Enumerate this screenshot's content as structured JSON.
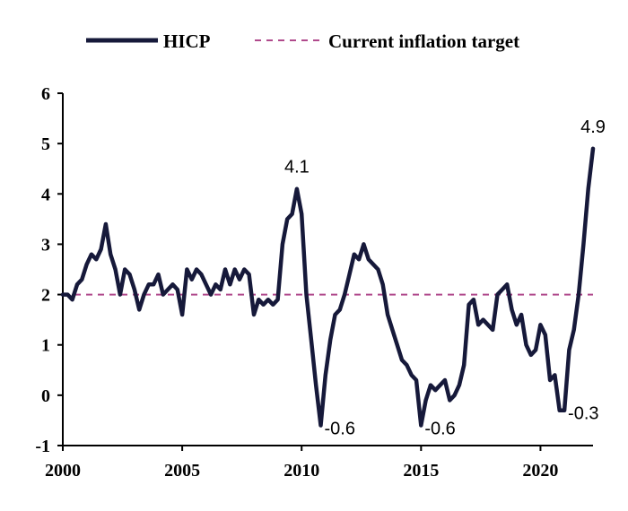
{
  "chart_data": {
    "type": "line",
    "ylim": [
      -1,
      6
    ],
    "xlim": [
      2000,
      2022.2
    ],
    "yticks": [
      "-1",
      "0",
      "1",
      "2",
      "3",
      "4",
      "5",
      "6"
    ],
    "xticks": [
      "2000",
      "2005",
      "2010",
      "2015",
      "2020"
    ],
    "grid": false,
    "legend_position": "top",
    "colors": {
      "hicp": "#16193a",
      "target": "#b04a8c"
    },
    "series": [
      {
        "name": "HICP",
        "points": [
          [
            2000.0,
            2.0
          ],
          [
            2000.2,
            2.0
          ],
          [
            2000.4,
            1.9
          ],
          [
            2000.6,
            2.2
          ],
          [
            2000.8,
            2.3
          ],
          [
            2001.0,
            2.6
          ],
          [
            2001.2,
            2.8
          ],
          [
            2001.4,
            2.7
          ],
          [
            2001.6,
            2.9
          ],
          [
            2001.8,
            3.4
          ],
          [
            2002.0,
            2.8
          ],
          [
            2002.2,
            2.5
          ],
          [
            2002.4,
            2.0
          ],
          [
            2002.6,
            2.5
          ],
          [
            2002.8,
            2.4
          ],
          [
            2003.0,
            2.1
          ],
          [
            2003.2,
            1.7
          ],
          [
            2003.4,
            2.0
          ],
          [
            2003.6,
            2.2
          ],
          [
            2003.8,
            2.2
          ],
          [
            2004.0,
            2.4
          ],
          [
            2004.2,
            2.0
          ],
          [
            2004.4,
            2.1
          ],
          [
            2004.6,
            2.2
          ],
          [
            2004.8,
            2.1
          ],
          [
            2005.0,
            1.6
          ],
          [
            2005.2,
            2.5
          ],
          [
            2005.4,
            2.3
          ],
          [
            2005.6,
            2.5
          ],
          [
            2005.8,
            2.4
          ],
          [
            2006.0,
            2.2
          ],
          [
            2006.2,
            2.0
          ],
          [
            2006.4,
            2.2
          ],
          [
            2006.6,
            2.1
          ],
          [
            2006.8,
            2.5
          ],
          [
            2007.0,
            2.2
          ],
          [
            2007.2,
            2.5
          ],
          [
            2007.4,
            2.3
          ],
          [
            2007.6,
            2.5
          ],
          [
            2007.8,
            2.4
          ],
          [
            2008.0,
            1.6
          ],
          [
            2008.2,
            1.9
          ],
          [
            2008.4,
            1.8
          ],
          [
            2008.6,
            1.9
          ],
          [
            2008.8,
            1.8
          ],
          [
            2009.0,
            1.9
          ],
          [
            2009.2,
            3.0
          ],
          [
            2009.4,
            3.5
          ],
          [
            2009.6,
            3.6
          ],
          [
            2009.8,
            4.1
          ],
          [
            2010.0,
            3.6
          ],
          [
            2010.2,
            2.0
          ],
          [
            2010.4,
            1.1
          ],
          [
            2010.6,
            0.2
          ],
          [
            2010.8,
            -0.6
          ],
          [
            2011.0,
            0.4
          ],
          [
            2011.2,
            1.1
          ],
          [
            2011.4,
            1.6
          ],
          [
            2011.6,
            1.7
          ],
          [
            2011.8,
            2.0
          ],
          [
            2012.0,
            2.4
          ],
          [
            2012.2,
            2.8
          ],
          [
            2012.4,
            2.7
          ],
          [
            2012.6,
            3.0
          ],
          [
            2012.8,
            2.7
          ],
          [
            2013.0,
            2.6
          ],
          [
            2013.2,
            2.5
          ],
          [
            2013.4,
            2.2
          ],
          [
            2013.6,
            1.6
          ],
          [
            2013.8,
            1.3
          ],
          [
            2014.0,
            1.0
          ],
          [
            2014.2,
            0.7
          ],
          [
            2014.4,
            0.6
          ],
          [
            2014.6,
            0.4
          ],
          [
            2014.8,
            0.3
          ],
          [
            2015.0,
            -0.6
          ],
          [
            2015.2,
            -0.1
          ],
          [
            2015.4,
            0.2
          ],
          [
            2015.6,
            0.1
          ],
          [
            2015.8,
            0.2
          ],
          [
            2016.0,
            0.3
          ],
          [
            2016.2,
            -0.1
          ],
          [
            2016.4,
            0.0
          ],
          [
            2016.6,
            0.2
          ],
          [
            2016.8,
            0.6
          ],
          [
            2017.0,
            1.8
          ],
          [
            2017.2,
            1.9
          ],
          [
            2017.4,
            1.4
          ],
          [
            2017.6,
            1.5
          ],
          [
            2017.8,
            1.4
          ],
          [
            2018.0,
            1.3
          ],
          [
            2018.2,
            2.0
          ],
          [
            2018.4,
            2.1
          ],
          [
            2018.6,
            2.2
          ],
          [
            2018.8,
            1.7
          ],
          [
            2019.0,
            1.4
          ],
          [
            2019.2,
            1.6
          ],
          [
            2019.4,
            1.0
          ],
          [
            2019.6,
            0.8
          ],
          [
            2019.8,
            0.9
          ],
          [
            2020.0,
            1.4
          ],
          [
            2020.2,
            1.2
          ],
          [
            2020.4,
            0.3
          ],
          [
            2020.6,
            0.4
          ],
          [
            2020.8,
            -0.3
          ],
          [
            2021.0,
            -0.3
          ],
          [
            2021.2,
            0.9
          ],
          [
            2021.4,
            1.3
          ],
          [
            2021.6,
            2.0
          ],
          [
            2021.8,
            3.0
          ],
          [
            2022.0,
            4.1
          ],
          [
            2022.2,
            4.9
          ]
        ]
      },
      {
        "name": "Current inflation target",
        "y": 2.0
      }
    ],
    "annotations": [
      {
        "text": "4.1",
        "x": 2009.8,
        "y": 4.1,
        "anchor": "above"
      },
      {
        "text": "-0.6",
        "x": 2010.8,
        "y": -0.6,
        "anchor": "right"
      },
      {
        "text": "-0.6",
        "x": 2015.0,
        "y": -0.6,
        "anchor": "right"
      },
      {
        "text": "-0.3",
        "x": 2021.0,
        "y": -0.3,
        "anchor": "right"
      },
      {
        "text": "4.9",
        "x": 2022.2,
        "y": 4.9,
        "anchor": "above"
      }
    ]
  }
}
